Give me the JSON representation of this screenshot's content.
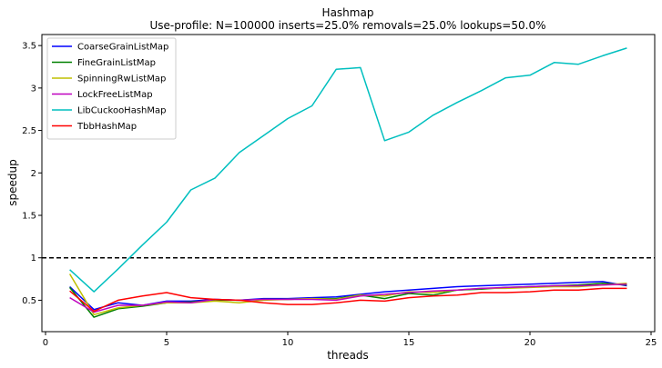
{
  "chart_data": {
    "type": "line",
    "title": "Hashmap",
    "subtitle": "Use-profile: N=100000 inserts=25.0% removals=25.0% lookups=50.0%",
    "xlabel": "threads",
    "ylabel": "speedup",
    "xlim": [
      -0.15,
      25.15
    ],
    "ylim": [
      0.13,
      3.63
    ],
    "xticks": [
      0,
      5,
      10,
      15,
      20,
      25
    ],
    "yticks": [
      0.5,
      1.0,
      1.5,
      2.0,
      2.5,
      3.0,
      3.5
    ],
    "reference_line": {
      "y": 1.0,
      "style": "dashed",
      "color": "#000000"
    },
    "grid": false,
    "legend_position": "top-left",
    "x": [
      1,
      2,
      3,
      4,
      5,
      6,
      7,
      8,
      9,
      10,
      11,
      12,
      13,
      14,
      15,
      16,
      17,
      18,
      19,
      20,
      21,
      22,
      23,
      24
    ],
    "series": [
      {
        "name": "CoarseGrainListMap",
        "color": "#0000ff",
        "values": [
          0.66,
          0.39,
          0.47,
          0.44,
          0.49,
          0.49,
          0.51,
          0.5,
          0.52,
          0.52,
          0.53,
          0.54,
          0.57,
          0.6,
          0.62,
          0.64,
          0.66,
          0.67,
          0.68,
          0.69,
          0.7,
          0.71,
          0.72,
          0.67
        ]
      },
      {
        "name": "FineGrainListMap",
        "color": "#008000",
        "values": [
          0.65,
          0.3,
          0.4,
          0.43,
          0.47,
          0.48,
          0.5,
          0.5,
          0.51,
          0.51,
          0.52,
          0.52,
          0.56,
          0.52,
          0.58,
          0.56,
          0.62,
          0.63,
          0.65,
          0.66,
          0.67,
          0.68,
          0.7,
          0.68
        ]
      },
      {
        "name": "SpinningRwListMap",
        "color": "#bfbf00",
        "values": [
          0.81,
          0.33,
          0.41,
          0.44,
          0.47,
          0.47,
          0.49,
          0.47,
          0.5,
          0.51,
          0.52,
          0.51,
          0.56,
          0.55,
          0.6,
          0.59,
          0.62,
          0.64,
          0.64,
          0.65,
          0.66,
          0.66,
          0.68,
          0.7
        ]
      },
      {
        "name": "LockFreeListMap",
        "color": "#bf00bf",
        "values": [
          0.53,
          0.36,
          0.44,
          0.44,
          0.48,
          0.47,
          0.51,
          0.5,
          0.51,
          0.51,
          0.51,
          0.5,
          0.55,
          0.57,
          0.59,
          0.61,
          0.62,
          0.64,
          0.65,
          0.66,
          0.67,
          0.67,
          0.68,
          0.69
        ]
      },
      {
        "name": "LibCuckooHashMap",
        "color": "#00bfbf",
        "values": [
          0.86,
          0.6,
          0.87,
          1.15,
          1.42,
          1.8,
          1.94,
          2.24,
          2.44,
          2.64,
          2.79,
          3.22,
          3.24,
          2.38,
          2.48,
          2.68,
          2.83,
          2.97,
          3.12,
          3.15,
          3.3,
          3.28,
          3.38,
          3.47
        ]
      },
      {
        "name": "TbbHashMap",
        "color": "#ff0000",
        "values": [
          0.61,
          0.37,
          0.5,
          0.55,
          0.59,
          0.53,
          0.51,
          0.5,
          0.47,
          0.45,
          0.45,
          0.47,
          0.5,
          0.49,
          0.53,
          0.55,
          0.56,
          0.59,
          0.59,
          0.6,
          0.62,
          0.62,
          0.64,
          0.64
        ]
      }
    ]
  }
}
